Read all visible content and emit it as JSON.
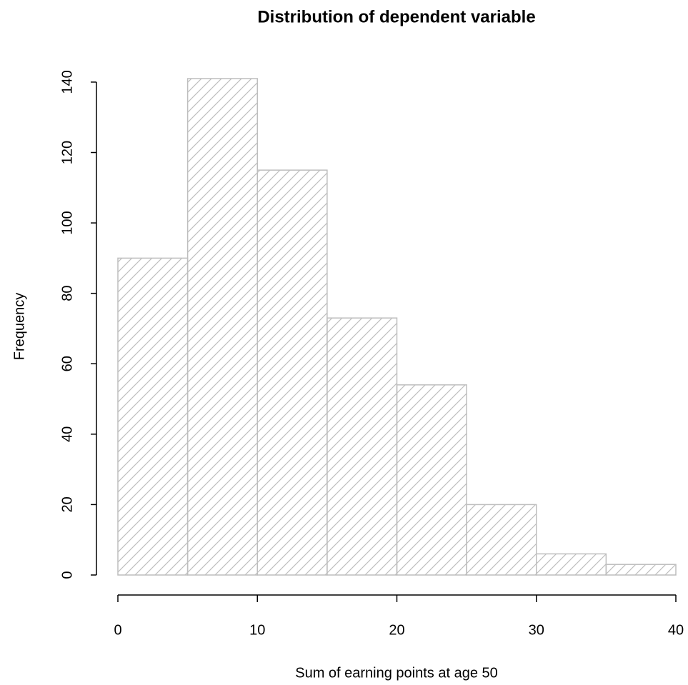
{
  "chart_data": {
    "type": "histogram",
    "title": "Distribution of dependent variable",
    "x_label": "Sum of earning points at age 50",
    "y_label": "Frequency",
    "bins": [
      0,
      5,
      10,
      15,
      20,
      25,
      30,
      35,
      40
    ],
    "values": [
      90,
      141,
      115,
      73,
      54,
      20,
      6,
      3
    ],
    "color": "#bebebe",
    "hatch": true,
    "xlim": [
      0,
      40
    ],
    "xticks": [
      0,
      10,
      20,
      30,
      40
    ],
    "ylim": [
      0,
      141
    ],
    "yticks": [
      0,
      20,
      40,
      60,
      80,
      100,
      120,
      140
    ]
  }
}
